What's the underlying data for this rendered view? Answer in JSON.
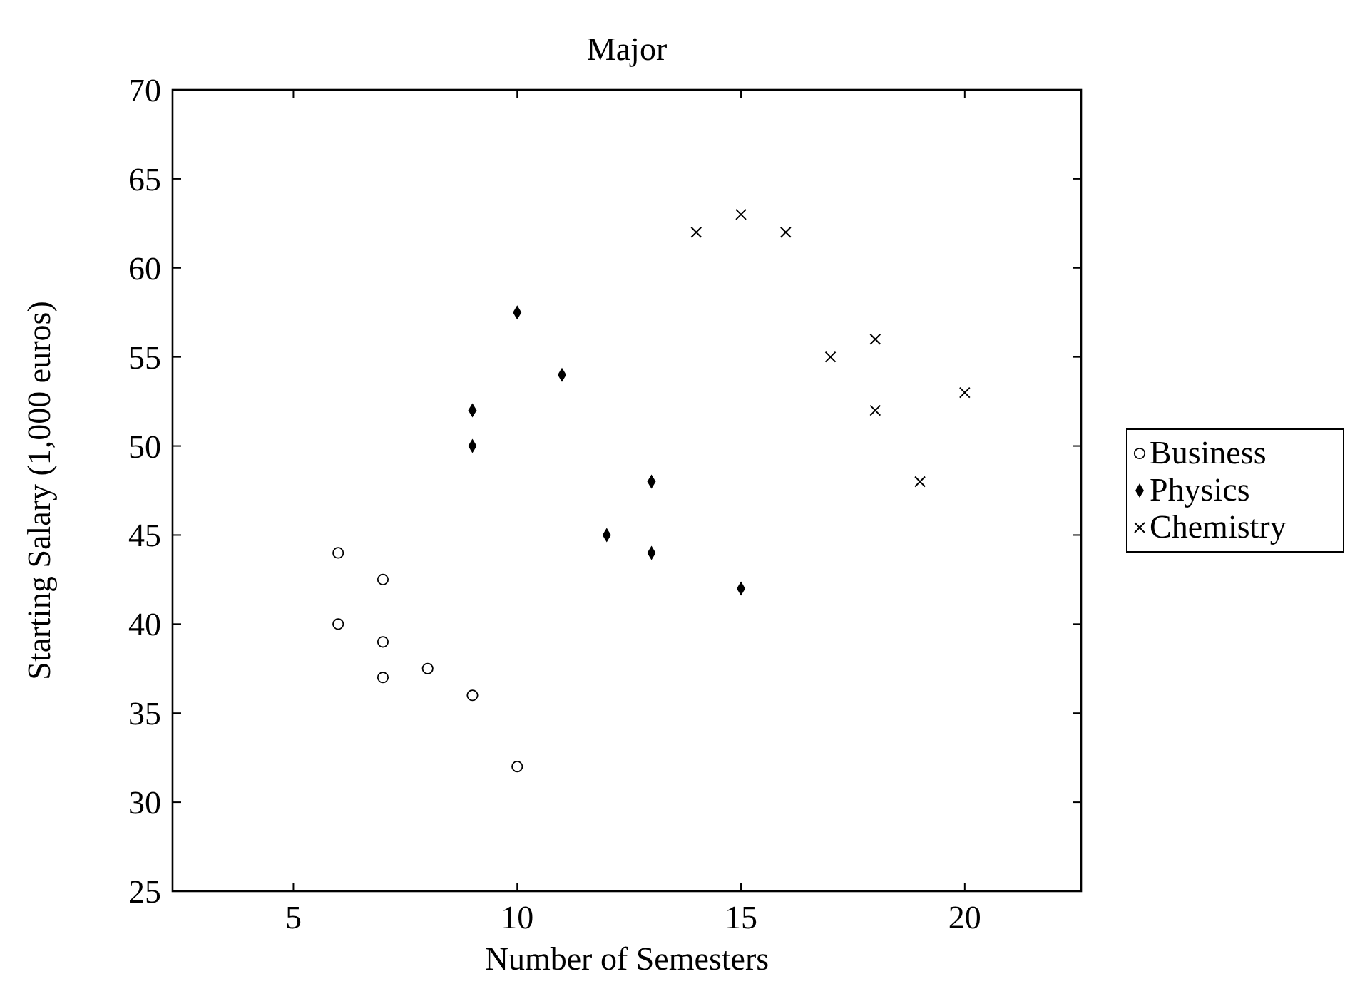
{
  "chart_data": {
    "type": "scatter",
    "title": "Major",
    "xlabel": "Number of Semesters",
    "ylabel": "Starting Salary (1,000 euros)",
    "xlim": [
      2.3,
      22.6
    ],
    "xticks": [
      5,
      10,
      15,
      20
    ],
    "ylim": [
      25,
      70
    ],
    "yticks": [
      25,
      30,
      35,
      40,
      45,
      50,
      55,
      60,
      65,
      70
    ],
    "grid": false,
    "legend": "right",
    "series": [
      {
        "name": "Business",
        "color": "#000000",
        "marker": "circle",
        "x": [
          6,
          6,
          7,
          7,
          7,
          8,
          9,
          10
        ],
        "values": [
          44,
          40,
          42.5,
          39,
          37,
          37.5,
          36,
          32
        ]
      },
      {
        "name": "Physics",
        "color": "#000000",
        "marker": "diamond",
        "x": [
          9,
          9,
          10,
          11,
          12,
          13,
          13,
          15
        ],
        "values": [
          52,
          50,
          57.5,
          54,
          45,
          48,
          44,
          42
        ]
      },
      {
        "name": "Chemistry",
        "color": "#000000",
        "marker": "cross",
        "x": [
          14,
          15,
          16,
          17,
          18,
          18,
          19,
          20
        ],
        "values": [
          62,
          63,
          62,
          55,
          56,
          52,
          48,
          53
        ]
      }
    ]
  }
}
